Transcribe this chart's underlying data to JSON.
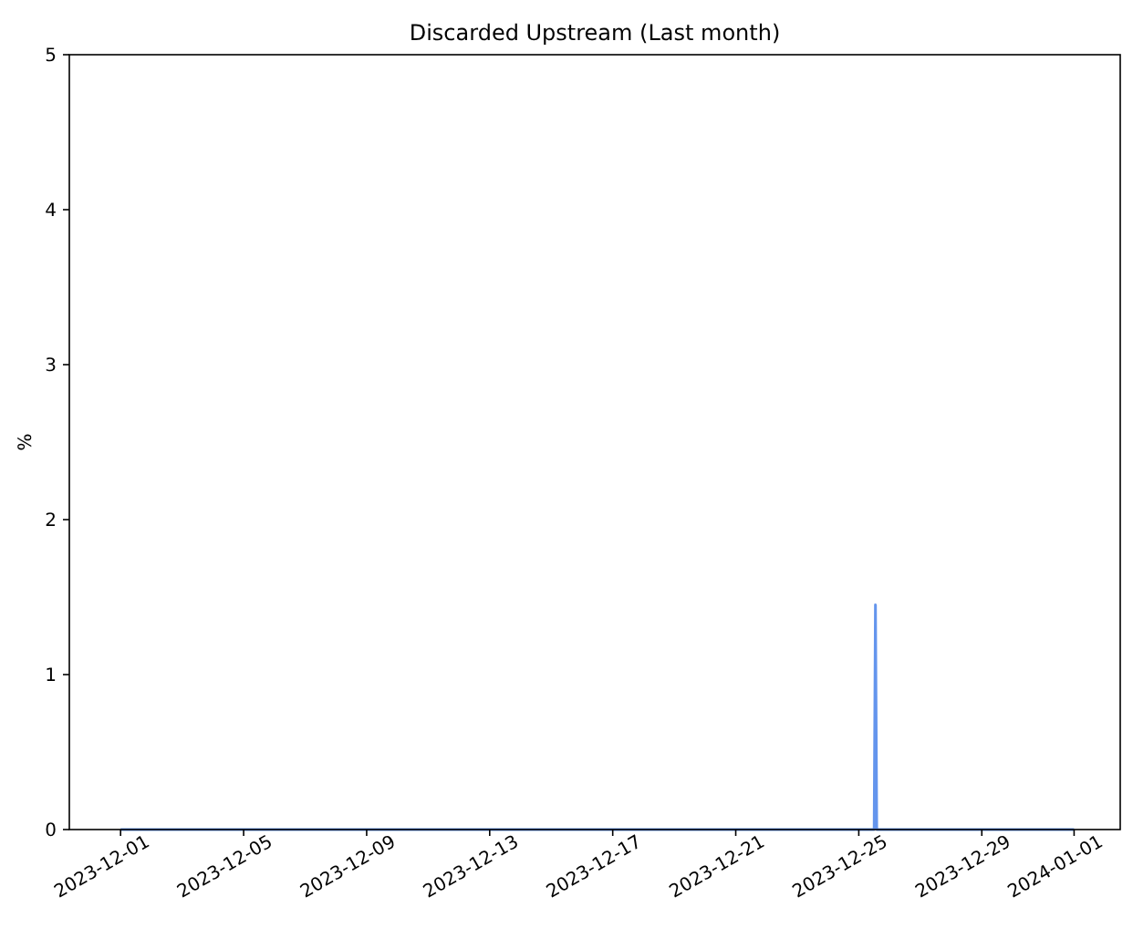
{
  "chart_data": {
    "type": "area",
    "title": "Discarded Upstream (Last month)",
    "ylabel": "%",
    "x": [
      "2023-12-01T00:00",
      "2023-12-25T12:00",
      "2023-12-25T13:00",
      "2023-12-25T14:00",
      "2024-01-01T00:00"
    ],
    "series": [
      {
        "color": "#6495ed",
        "values": [
          0,
          0,
          1.45,
          0,
          0
        ]
      }
    ],
    "xlim": [
      "2023-11-29T08:00",
      "2024-01-02T12:00"
    ],
    "xticks": [
      {
        "value": "2023-12-01",
        "label": "2023-12-01"
      },
      {
        "value": "2023-12-05",
        "label": "2023-12-05"
      },
      {
        "value": "2023-12-09",
        "label": "2023-12-09"
      },
      {
        "value": "2023-12-13",
        "label": "2023-12-13"
      },
      {
        "value": "2023-12-17",
        "label": "2023-12-17"
      },
      {
        "value": "2023-12-21",
        "label": "2023-12-21"
      },
      {
        "value": "2023-12-25",
        "label": "2023-12-25"
      },
      {
        "value": "2023-12-29",
        "label": "2023-12-29"
      },
      {
        "value": "2024-01-01",
        "label": "2024-01-01"
      }
    ],
    "ylim": [
      0,
      5
    ],
    "yticks": [
      0,
      1,
      2,
      3,
      4,
      5
    ],
    "grid": false
  }
}
